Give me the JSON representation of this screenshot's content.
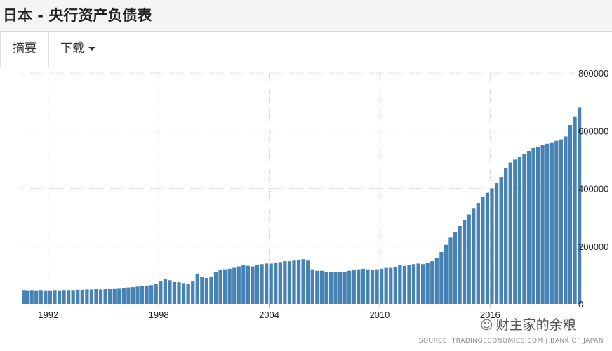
{
  "header": {
    "title": "日本 - 央行资产负债表"
  },
  "tabs": [
    {
      "label": "摘要"
    },
    {
      "label": "下载"
    }
  ],
  "watermark": "财主家的余粮",
  "source": "SOURCE: TRADINGECONOMICS.COM  |  BANK OF JAPAN",
  "chart_data": {
    "type": "bar",
    "title": "",
    "xlabel": "",
    "ylabel": "",
    "frequency": "quarterly",
    "start": "1990-Q3",
    "xlim": [
      1990.6,
      2020.6
    ],
    "ylim": [
      0,
      800000
    ],
    "x_ticks": [
      1992,
      1998,
      2004,
      2010,
      2016
    ],
    "y_ticks": [
      0,
      200000,
      400000,
      600000,
      800000
    ],
    "y_axis_side": "right",
    "grid": true,
    "bar_color": "#4682b4",
    "values": [
      48000,
      47000,
      48000,
      47000,
      48000,
      47000,
      47000,
      48000,
      47000,
      48000,
      48000,
      48000,
      49000,
      49000,
      50000,
      50000,
      51000,
      50000,
      52000,
      53000,
      54000,
      55000,
      56000,
      57000,
      58000,
      60000,
      62000,
      63000,
      65000,
      68000,
      80000,
      85000,
      82000,
      78000,
      75000,
      72000,
      70000,
      80000,
      105000,
      95000,
      90000,
      95000,
      110000,
      118000,
      120000,
      122000,
      125000,
      130000,
      135000,
      132000,
      130000,
      135000,
      138000,
      140000,
      140000,
      142000,
      145000,
      148000,
      148000,
      150000,
      152000,
      155000,
      150000,
      120000,
      115000,
      115000,
      112000,
      110000,
      110000,
      112000,
      112000,
      115000,
      118000,
      120000,
      122000,
      120000,
      118000,
      120000,
      122000,
      125000,
      125000,
      128000,
      135000,
      132000,
      135000,
      138000,
      140000,
      138000,
      142000,
      148000,
      158000,
      180000,
      205000,
      230000,
      250000,
      270000,
      290000,
      310000,
      330000,
      350000,
      370000,
      385000,
      400000,
      420000,
      440000,
      470000,
      490000,
      500000,
      510000,
      520000,
      530000,
      540000,
      545000,
      550000,
      555000,
      560000,
      565000,
      570000,
      580000,
      620000,
      650000,
      680000
    ]
  }
}
